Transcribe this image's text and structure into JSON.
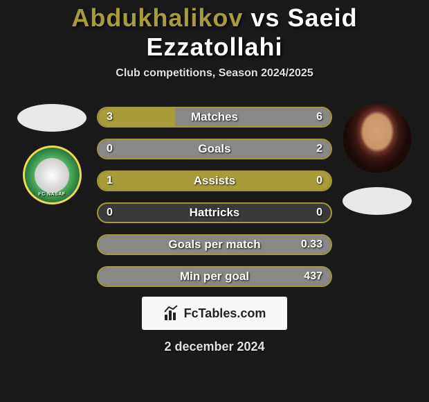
{
  "title": {
    "player1": "Abdukhalikov",
    "vs": "vs",
    "player2": "Saeid Ezzatollahi"
  },
  "subtitle": "Club competitions, Season 2024/2025",
  "colors": {
    "player1_bar": "#a89b3a",
    "player2_bar": "#888888",
    "bar_border": "#a49838",
    "bar_bg": "#3a3a3a",
    "page_bg": "#1a1a1a",
    "text": "#ffffff"
  },
  "badge_text": "FC NASAF",
  "stats": [
    {
      "label": "Matches",
      "left_val": "3",
      "right_val": "6",
      "left_pct": 33,
      "right_pct": 67
    },
    {
      "label": "Goals",
      "left_val": "0",
      "right_val": "2",
      "left_pct": 0,
      "right_pct": 100
    },
    {
      "label": "Assists",
      "left_val": "1",
      "right_val": "0",
      "left_pct": 100,
      "right_pct": 0
    },
    {
      "label": "Hattricks",
      "left_val": "0",
      "right_val": "0",
      "left_pct": 0,
      "right_pct": 0
    },
    {
      "label": "Goals per match",
      "left_val": "",
      "right_val": "0.33",
      "left_pct": 0,
      "right_pct": 100
    },
    {
      "label": "Min per goal",
      "left_val": "",
      "right_val": "437",
      "left_pct": 0,
      "right_pct": 100
    }
  ],
  "footer": {
    "logo_text": "FcTables.com",
    "date": "2 december 2024"
  }
}
